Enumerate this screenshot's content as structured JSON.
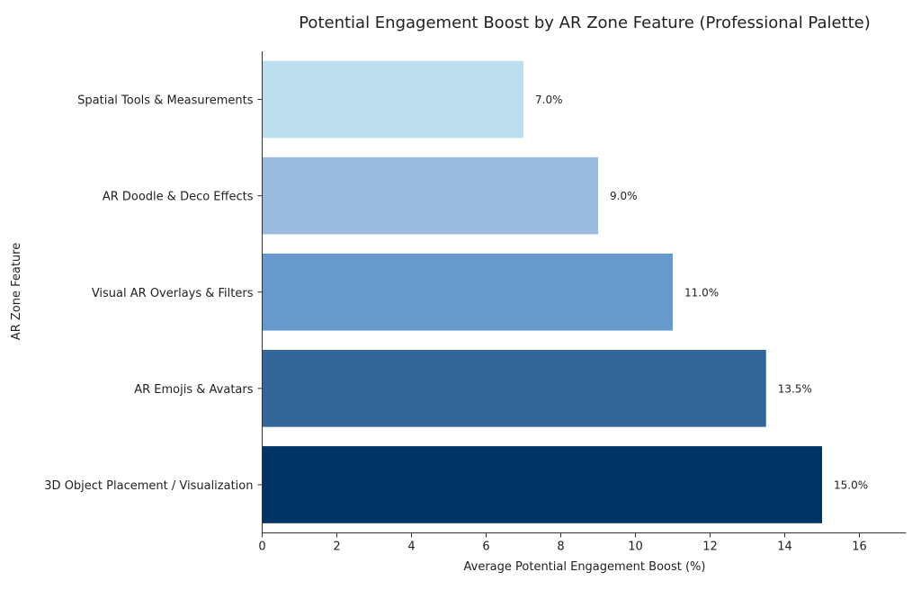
{
  "chart_data": {
    "type": "bar",
    "orientation": "horizontal",
    "title": "Potential Engagement Boost by AR Zone Feature (Professional Palette)",
    "xlabel": "Average Potential Engagement Boost (%)",
    "ylabel": "AR Zone Feature",
    "xlim": [
      0,
      17.25
    ],
    "xticks": [
      0,
      2,
      4,
      6,
      8,
      10,
      12,
      14,
      16
    ],
    "grid": false,
    "categories": [
      "Spatial Tools & Measurements",
      "AR Doodle & Deco Effects",
      "Visual AR Overlays & Filters",
      "AR Emojis & Avatars",
      "3D Object Placement / Visualization"
    ],
    "values": [
      7.0,
      9.0,
      11.0,
      13.5,
      15.0
    ],
    "data_labels": [
      "7.0%",
      "9.0%",
      "11.0%",
      "13.5%",
      "15.0%"
    ],
    "colors": [
      "#bcdeee",
      "#9abbde",
      "#6699cc",
      "#336699",
      "#003366"
    ]
  }
}
